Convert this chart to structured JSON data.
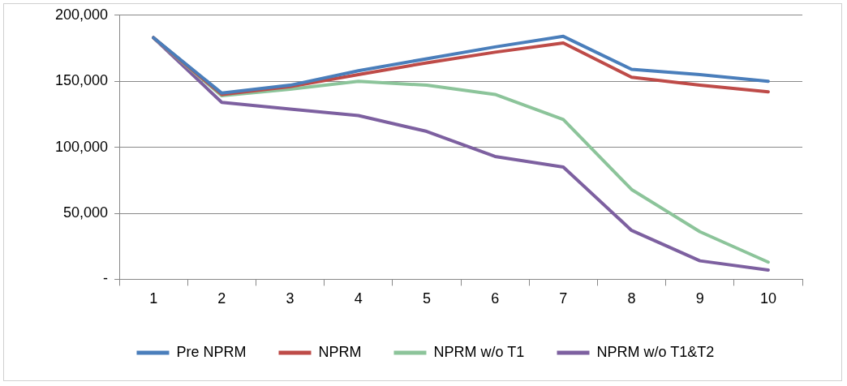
{
  "chart_data": {
    "type": "line",
    "categories": [
      "1",
      "2",
      "3",
      "4",
      "5",
      "6",
      "7",
      "8",
      "9",
      "10"
    ],
    "series": [
      {
        "name": "Pre NPRM",
        "color": "#4a7ebb",
        "values": [
          183000,
          141000,
          147000,
          158000,
          167000,
          176000,
          184000,
          159000,
          155000,
          150000
        ]
      },
      {
        "name": "NPRM",
        "color": "#be4b48",
        "values": [
          183000,
          140000,
          146000,
          155000,
          164000,
          172000,
          179000,
          153000,
          147000,
          142000
        ]
      },
      {
        "name": "NPRM w/o T1",
        "color": "#8cc49a",
        "values": [
          183000,
          139000,
          144000,
          150000,
          147000,
          140000,
          121000,
          68000,
          36000,
          13000
        ]
      },
      {
        "name": "NPRM w/o T1&T2",
        "color": "#7d60a0",
        "values": [
          183000,
          134000,
          129000,
          124000,
          112000,
          93000,
          85000,
          37000,
          14000,
          7000
        ]
      }
    ],
    "ylim": [
      0,
      200000
    ],
    "yticks": [
      {
        "value": 0,
        "label": "-"
      },
      {
        "value": 50000,
        "label": "50,000"
      },
      {
        "value": 100000,
        "label": "100,000"
      },
      {
        "value": 150000,
        "label": "150,000"
      },
      {
        "value": 200000,
        "label": "200,000"
      }
    ],
    "grid": "y",
    "legend": "bottom",
    "marker": "none",
    "line_style": "solid"
  }
}
